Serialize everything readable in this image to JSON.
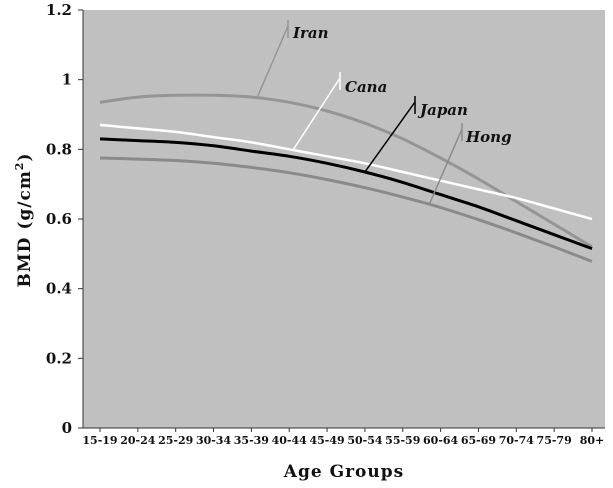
{
  "chart_data": {
    "type": "line",
    "xlabel": "Age Groups",
    "ylabel": "BMD (g/cm²)",
    "ylabel_parts": {
      "main": "BMD (g/cm",
      "sup": "2",
      "close": ")"
    },
    "ylim": [
      0,
      1.2
    ],
    "yticks": [
      "0",
      "0.2",
      "0.4",
      "0.6",
      "0.8",
      "1",
      "1.2"
    ],
    "grid": false,
    "categories": [
      "15-19",
      "20-24",
      "25-29",
      "30-34",
      "35-39",
      "40-44",
      "45-49",
      "50-54",
      "55-59",
      "60-64",
      "65-69",
      "70-74",
      "75-79",
      "80+"
    ],
    "series": [
      {
        "name": "Iran",
        "color": "#959595",
        "values": [
          0.935,
          0.95,
          0.955,
          0.955,
          0.95,
          0.935,
          0.91,
          0.875,
          0.83,
          0.775,
          0.715,
          0.65,
          0.585,
          0.52
        ]
      },
      {
        "name": "Cana",
        "color": "#ffffff",
        "values": [
          0.87,
          0.86,
          0.85,
          0.835,
          0.82,
          0.8,
          0.78,
          0.76,
          0.735,
          0.71,
          0.685,
          0.66,
          0.63,
          0.6
        ]
      },
      {
        "name": "Japan",
        "color": "#000000",
        "values": [
          0.83,
          0.825,
          0.82,
          0.81,
          0.795,
          0.78,
          0.76,
          0.735,
          0.705,
          0.67,
          0.635,
          0.595,
          0.555,
          0.515
        ]
      },
      {
        "name": "Hong",
        "color": "#8a8a8a",
        "values": [
          0.775,
          0.772,
          0.768,
          0.76,
          0.748,
          0.733,
          0.713,
          0.69,
          0.663,
          0.633,
          0.598,
          0.56,
          0.52,
          0.478
        ]
      }
    ]
  }
}
